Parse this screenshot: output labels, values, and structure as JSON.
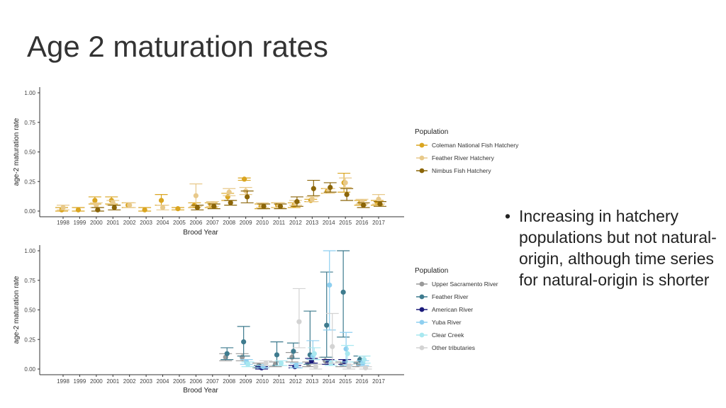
{
  "slide": {
    "title": "Age 2 maturation rates",
    "bullet": "Increasing in hatchery populations but not natural-origin, although time series for natural-origin is shorter"
  },
  "chart_data": [
    {
      "type": "scatter",
      "title": "",
      "xlabel": "Brood Year",
      "ylabel": "age-2 maturation rate",
      "ylim": [
        0,
        1
      ],
      "yticks": [
        "0.00",
        "0.25",
        "0.50",
        "0.75",
        "1.00"
      ],
      "x_categories": [
        "1998",
        "1999",
        "2000",
        "2001",
        "2002",
        "2003",
        "2004",
        "2005",
        "2006",
        "2007",
        "2008",
        "2009",
        "2010",
        "2011",
        "2012",
        "2013",
        "2014",
        "2015",
        "2016",
        "2017"
      ],
      "legend_title": "Population",
      "legend_position": "right",
      "grid": false,
      "series": [
        {
          "name": "Coleman National Fish Hatchery",
          "color": "#DAA520",
          "points": [
            [
              1998,
              0.01,
              0,
              0.03
            ],
            [
              1999,
              0.01,
              0,
              0.03
            ],
            [
              2000,
              0.09,
              0.06,
              0.12
            ],
            [
              2001,
              0.09,
              0.06,
              0.12
            ],
            [
              2002,
              0.05,
              0.03,
              0.07
            ],
            [
              2003,
              0.01,
              0,
              0.03
            ],
            [
              2004,
              0.09,
              0.05,
              0.14
            ],
            [
              2005,
              0.02,
              0.01,
              0.03
            ],
            [
              2006,
              0.05,
              0.03,
              0.07
            ],
            [
              2007,
              0.05,
              0.03,
              0.07
            ],
            [
              2008,
              0.12,
              0.09,
              0.15
            ],
            [
              2009,
              0.27,
              0.26,
              0.28
            ],
            [
              2010,
              0.04,
              0.02,
              0.06
            ],
            [
              2011,
              0.05,
              0.03,
              0.07
            ],
            [
              2012,
              0.05,
              0.03,
              0.07
            ],
            [
              2013,
              0.09,
              0.08,
              0.1
            ],
            [
              2014,
              0.17,
              0.15,
              0.19
            ],
            [
              2015,
              0.24,
              0.16,
              0.32
            ],
            [
              2016,
              0.07,
              0.05,
              0.09
            ],
            [
              2017,
              0.07,
              0.05,
              0.09
            ]
          ]
        },
        {
          "name": "Feather River Hatchery",
          "color": "#E8C98A",
          "points": [
            [
              1998,
              0.03,
              0.01,
              0.05
            ],
            [
              2000,
              0.05,
              0.03,
              0.07
            ],
            [
              2001,
              0.07,
              0.05,
              0.09
            ],
            [
              2002,
              0.05,
              0.03,
              0.07
            ],
            [
              2004,
              0.03,
              0.01,
              0.05
            ],
            [
              2006,
              0.13,
              0.04,
              0.23
            ],
            [
              2007,
              0.06,
              0.04,
              0.08
            ],
            [
              2008,
              0.16,
              0.13,
              0.19
            ],
            [
              2009,
              0.17,
              0.14,
              0.2
            ],
            [
              2010,
              0.05,
              0.03,
              0.07
            ],
            [
              2011,
              0.05,
              0.03,
              0.07
            ],
            [
              2012,
              0.07,
              0.05,
              0.09
            ],
            [
              2013,
              0.1,
              0.08,
              0.12
            ],
            [
              2014,
              0.17,
              0.15,
              0.19
            ],
            [
              2015,
              0.24,
              0.2,
              0.28
            ],
            [
              2016,
              0.08,
              0.06,
              0.1
            ],
            [
              2017,
              0.1,
              0.06,
              0.14
            ]
          ]
        },
        {
          "name": "Nimbus Fish Hatchery",
          "color": "#8B6508",
          "points": [
            [
              2000,
              0.01,
              0,
              0.03
            ],
            [
              2001,
              0.03,
              0.01,
              0.05
            ],
            [
              2006,
              0.03,
              0.01,
              0.05
            ],
            [
              2007,
              0.04,
              0.02,
              0.06
            ],
            [
              2008,
              0.07,
              0.05,
              0.09
            ],
            [
              2009,
              0.12,
              0.07,
              0.17
            ],
            [
              2010,
              0.04,
              0.02,
              0.06
            ],
            [
              2011,
              0.04,
              0.02,
              0.06
            ],
            [
              2012,
              0.08,
              0.04,
              0.12
            ],
            [
              2013,
              0.19,
              0.13,
              0.26
            ],
            [
              2014,
              0.2,
              0.16,
              0.24
            ],
            [
              2015,
              0.14,
              0.09,
              0.19
            ],
            [
              2016,
              0.05,
              0.03,
              0.07
            ],
            [
              2017,
              0.06,
              0.04,
              0.08
            ]
          ]
        }
      ]
    },
    {
      "type": "scatter",
      "title": "",
      "xlabel": "Brood Year",
      "ylabel": "age-2 maturation rate",
      "ylim": [
        0,
        1
      ],
      "yticks": [
        "0.00",
        "0.25",
        "0.50",
        "0.75",
        "1.00"
      ],
      "x_categories": [
        "1998",
        "1999",
        "2000",
        "2001",
        "2002",
        "2003",
        "2004",
        "2005",
        "2006",
        "2007",
        "2008",
        "2009",
        "2010",
        "2011",
        "2012",
        "2013",
        "2014",
        "2015",
        "2016",
        "2017"
      ],
      "legend_title": "Population",
      "legend_position": "right",
      "grid": false,
      "series": [
        {
          "name": "Upper Sacramento River",
          "color": "#999999",
          "points": [
            [
              2008,
              0.1,
              0.07,
              0.13
            ],
            [
              2009,
              0.1,
              0.07,
              0.13
            ],
            [
              2010,
              0.03,
              0.01,
              0.05
            ],
            [
              2011,
              0.04,
              0.02,
              0.06
            ],
            [
              2012,
              0.1,
              0.06,
              0.14
            ],
            [
              2013,
              0.04,
              0.02,
              0.06
            ],
            [
              2014,
              0.07,
              0.04,
              0.1
            ],
            [
              2015,
              0.04,
              0.02,
              0.06
            ],
            [
              2016,
              0.04,
              0.02,
              0.06
            ]
          ]
        },
        {
          "name": "Feather River",
          "color": "#3E7B8E",
          "points": [
            [
              2008,
              0.13,
              0.08,
              0.18
            ],
            [
              2009,
              0.23,
              0.11,
              0.36
            ],
            [
              2010,
              0.02,
              0.01,
              0.03
            ],
            [
              2011,
              0.12,
              0.03,
              0.23
            ],
            [
              2012,
              0.15,
              0.09,
              0.22
            ],
            [
              2013,
              0.12,
              0.04,
              0.49
            ],
            [
              2014,
              0.37,
              0.1,
              0.82
            ],
            [
              2015,
              0.65,
              0.27,
              1.0
            ],
            [
              2016,
              0.08,
              0.05,
              0.11
            ]
          ]
        },
        {
          "name": "American River",
          "color": "#1A1A7A",
          "points": [
            [
              2010,
              0.01,
              0,
              0.02
            ],
            [
              2012,
              0.02,
              0.01,
              0.03
            ],
            [
              2013,
              0.07,
              0.05,
              0.09
            ],
            [
              2014,
              0.06,
              0.04,
              0.08
            ],
            [
              2015,
              0.06,
              0.04,
              0.08
            ]
          ]
        },
        {
          "name": "Yuba River",
          "color": "#8ECFF0",
          "points": [
            [
              2009,
              0.06,
              0.04,
              0.08
            ],
            [
              2010,
              0.02,
              0.01,
              0.03
            ],
            [
              2012,
              0.03,
              0.01,
              0.05
            ],
            [
              2013,
              0.11,
              0.08,
              0.24
            ],
            [
              2014,
              0.71,
              0.33,
              1.0
            ],
            [
              2015,
              0.17,
              0.03,
              0.31
            ],
            [
              2016,
              0.05,
              0.03,
              0.07
            ]
          ]
        },
        {
          "name": "Clear Creek",
          "color": "#A8E8F0",
          "points": [
            [
              2009,
              0.04,
              0.02,
              0.06
            ],
            [
              2011,
              0.05,
              0.03,
              0.07
            ],
            [
              2013,
              0.13,
              0.08,
              0.18
            ],
            [
              2014,
              0.05,
              0.03,
              0.07
            ],
            [
              2015,
              0.13,
              0.06,
              0.2
            ],
            [
              2016,
              0.08,
              0.05,
              0.11
            ]
          ]
        },
        {
          "name": "Other tributaries",
          "color": "#D3D3D3",
          "points": [
            [
              2010,
              0.05,
              0.03,
              0.07
            ],
            [
              2012,
              0.4,
              0.18,
              0.68
            ],
            [
              2013,
              0.02,
              0,
              0.04
            ],
            [
              2014,
              0.19,
              0.05,
              0.47
            ],
            [
              2015,
              0.02,
              0,
              0.04
            ],
            [
              2016,
              0.01,
              0,
              0.02
            ]
          ]
        }
      ]
    }
  ]
}
